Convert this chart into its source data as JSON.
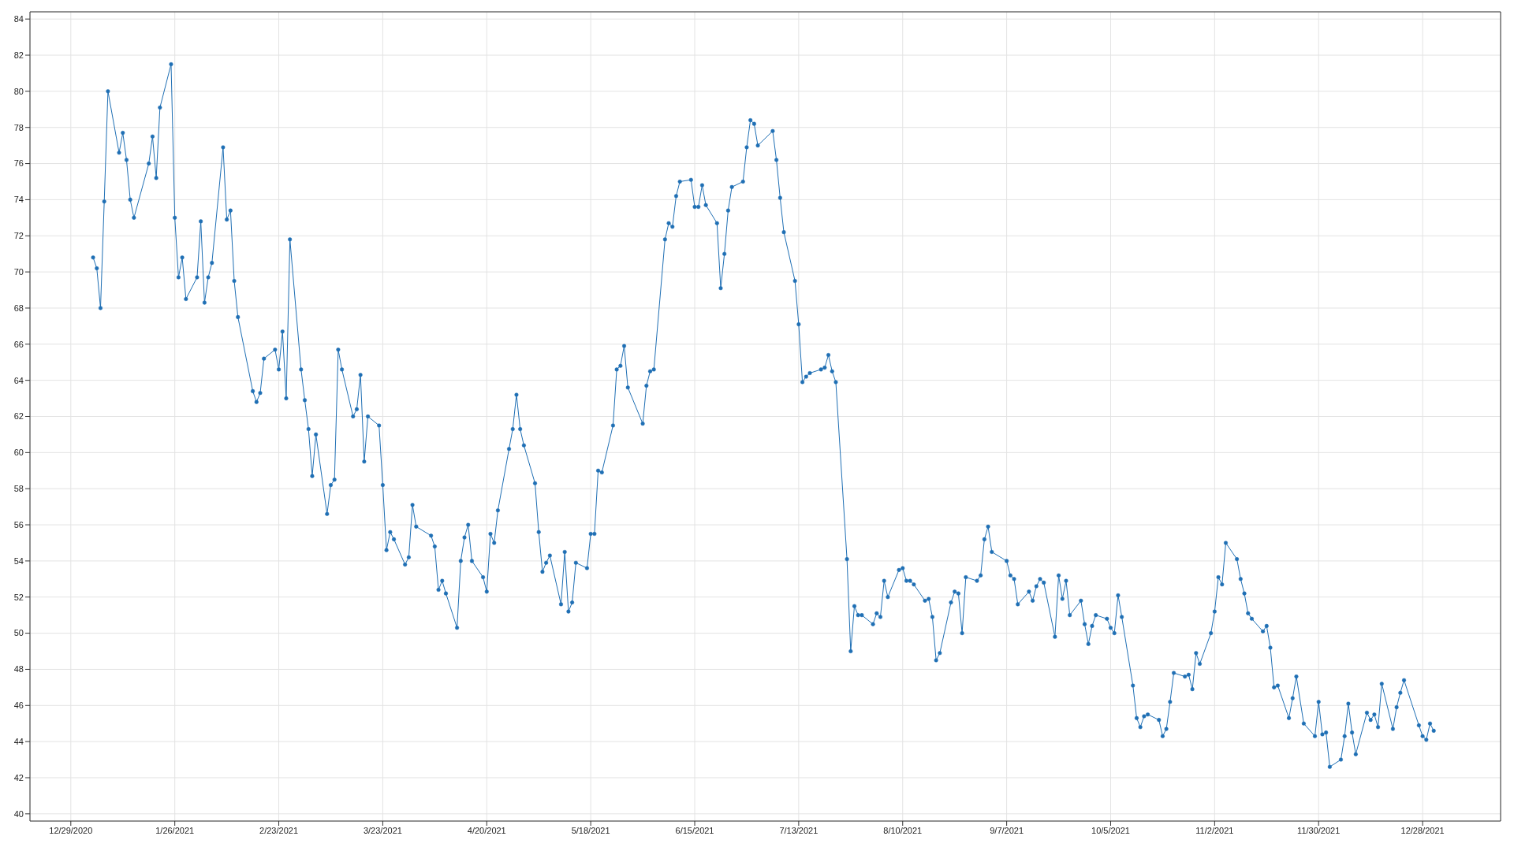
{
  "chart_data": {
    "type": "line",
    "xlim": [
      "2020-12-18",
      "2022-01-18"
    ],
    "ylim": [
      39.6,
      84.4
    ],
    "xticks": [
      {
        "value": "2020-12-29",
        "label": "12/29/2020"
      },
      {
        "value": "2021-01-26",
        "label": "1/26/2021"
      },
      {
        "value": "2021-02-23",
        "label": "2/23/2021"
      },
      {
        "value": "2021-03-23",
        "label": "3/23/2021"
      },
      {
        "value": "2021-04-20",
        "label": "4/20/2021"
      },
      {
        "value": "2021-05-18",
        "label": "5/18/2021"
      },
      {
        "value": "2021-06-15",
        "label": "6/15/2021"
      },
      {
        "value": "2021-07-13",
        "label": "7/13/2021"
      },
      {
        "value": "2021-08-10",
        "label": "8/10/2021"
      },
      {
        "value": "2021-09-07",
        "label": "9/7/2021"
      },
      {
        "value": "2021-10-05",
        "label": "10/5/2021"
      },
      {
        "value": "2021-11-02",
        "label": "11/2/2021"
      },
      {
        "value": "2021-11-30",
        "label": "11/30/2021"
      },
      {
        "value": "2021-12-28",
        "label": "12/28/2021"
      }
    ],
    "yticks": [
      40,
      42,
      44,
      46,
      48,
      50,
      52,
      54,
      56,
      58,
      60,
      62,
      64,
      66,
      68,
      70,
      72,
      74,
      76,
      78,
      80,
      82,
      84
    ],
    "grid": true,
    "legend": false,
    "marker": "circle",
    "line_style": "solid",
    "x": [
      "2021-01-04",
      "2021-01-05",
      "2021-01-06",
      "2021-01-07",
      "2021-01-08",
      "2021-01-11",
      "2021-01-12",
      "2021-01-13",
      "2021-01-14",
      "2021-01-15",
      "2021-01-19",
      "2021-01-20",
      "2021-01-21",
      "2021-01-22",
      "2021-01-25",
      "2021-01-26",
      "2021-01-27",
      "2021-01-28",
      "2021-01-29",
      "2021-02-01",
      "2021-02-02",
      "2021-02-03",
      "2021-02-04",
      "2021-02-05",
      "2021-02-08",
      "2021-02-09",
      "2021-02-10",
      "2021-02-11",
      "2021-02-12",
      "2021-02-16",
      "2021-02-17",
      "2021-02-18",
      "2021-02-19",
      "2021-02-22",
      "2021-02-23",
      "2021-02-24",
      "2021-02-25",
      "2021-02-26",
      "2021-03-01",
      "2021-03-02",
      "2021-03-03",
      "2021-03-04",
      "2021-03-05",
      "2021-03-08",
      "2021-03-09",
      "2021-03-10",
      "2021-03-11",
      "2021-03-12",
      "2021-03-15",
      "2021-03-16",
      "2021-03-17",
      "2021-03-18",
      "2021-03-19",
      "2021-03-22",
      "2021-03-23",
      "2021-03-24",
      "2021-03-25",
      "2021-03-26",
      "2021-03-29",
      "2021-03-30",
      "2021-03-31",
      "2021-04-01",
      "2021-04-05",
      "2021-04-06",
      "2021-04-07",
      "2021-04-08",
      "2021-04-09",
      "2021-04-12",
      "2021-04-13",
      "2021-04-14",
      "2021-04-15",
      "2021-04-16",
      "2021-04-19",
      "2021-04-20",
      "2021-04-21",
      "2021-04-22",
      "2021-04-23",
      "2021-04-26",
      "2021-04-27",
      "2021-04-28",
      "2021-04-29",
      "2021-04-30",
      "2021-05-03",
      "2021-05-04",
      "2021-05-05",
      "2021-05-06",
      "2021-05-07",
      "2021-05-10",
      "2021-05-11",
      "2021-05-12",
      "2021-05-13",
      "2021-05-14",
      "2021-05-17",
      "2021-05-18",
      "2021-05-19",
      "2021-05-20",
      "2021-05-21",
      "2021-05-24",
      "2021-05-25",
      "2021-05-26",
      "2021-05-27",
      "2021-05-28",
      "2021-06-01",
      "2021-06-02",
      "2021-06-03",
      "2021-06-04",
      "2021-06-07",
      "2021-06-08",
      "2021-06-09",
      "2021-06-10",
      "2021-06-11",
      "2021-06-14",
      "2021-06-15",
      "2021-06-16",
      "2021-06-17",
      "2021-06-18",
      "2021-06-21",
      "2021-06-22",
      "2021-06-23",
      "2021-06-24",
      "2021-06-25",
      "2021-06-28",
      "2021-06-29",
      "2021-06-30",
      "2021-07-01",
      "2021-07-02",
      "2021-07-06",
      "2021-07-07",
      "2021-07-08",
      "2021-07-09",
      "2021-07-12",
      "2021-07-13",
      "2021-07-14",
      "2021-07-15",
      "2021-07-16",
      "2021-07-19",
      "2021-07-20",
      "2021-07-21",
      "2021-07-22",
      "2021-07-23",
      "2021-07-26",
      "2021-07-27",
      "2021-07-28",
      "2021-07-29",
      "2021-07-30",
      "2021-08-02",
      "2021-08-03",
      "2021-08-04",
      "2021-08-05",
      "2021-08-06",
      "2021-08-09",
      "2021-08-10",
      "2021-08-11",
      "2021-08-12",
      "2021-08-13",
      "2021-08-16",
      "2021-08-17",
      "2021-08-18",
      "2021-08-19",
      "2021-08-20",
      "2021-08-23",
      "2021-08-24",
      "2021-08-25",
      "2021-08-26",
      "2021-08-27",
      "2021-08-30",
      "2021-08-31",
      "2021-09-01",
      "2021-09-02",
      "2021-09-03",
      "2021-09-07",
      "2021-09-08",
      "2021-09-09",
      "2021-09-10",
      "2021-09-13",
      "2021-09-14",
      "2021-09-15",
      "2021-09-16",
      "2021-09-17",
      "2021-09-20",
      "2021-09-21",
      "2021-09-22",
      "2021-09-23",
      "2021-09-24",
      "2021-09-27",
      "2021-09-28",
      "2021-09-29",
      "2021-09-30",
      "2021-10-01",
      "2021-10-04",
      "2021-10-05",
      "2021-10-06",
      "2021-10-07",
      "2021-10-08",
      "2021-10-11",
      "2021-10-12",
      "2021-10-13",
      "2021-10-14",
      "2021-10-15",
      "2021-10-18",
      "2021-10-19",
      "2021-10-20",
      "2021-10-21",
      "2021-10-22",
      "2021-10-25",
      "2021-10-26",
      "2021-10-27",
      "2021-10-28",
      "2021-10-29",
      "2021-11-01",
      "2021-11-02",
      "2021-11-03",
      "2021-11-04",
      "2021-11-05",
      "2021-11-08",
      "2021-11-09",
      "2021-11-10",
      "2021-11-11",
      "2021-11-12",
      "2021-11-15",
      "2021-11-16",
      "2021-11-17",
      "2021-11-18",
      "2021-11-19",
      "2021-11-22",
      "2021-11-23",
      "2021-11-24",
      "2021-11-26",
      "2021-11-29",
      "2021-11-30",
      "2021-12-01",
      "2021-12-02",
      "2021-12-03",
      "2021-12-06",
      "2021-12-07",
      "2021-12-08",
      "2021-12-09",
      "2021-12-10",
      "2021-12-13",
      "2021-12-14",
      "2021-12-15",
      "2021-12-16",
      "2021-12-17",
      "2021-12-20",
      "2021-12-21",
      "2021-12-22",
      "2021-12-23",
      "2021-12-27",
      "2021-12-28",
      "2021-12-29",
      "2021-12-30",
      "2021-12-31"
    ],
    "series": [
      {
        "color": "#1f6fb4",
        "values": [
          70.8,
          70.2,
          68.0,
          73.9,
          80.0,
          76.6,
          77.7,
          76.2,
          74.0,
          73.0,
          76.0,
          77.5,
          75.2,
          79.1,
          81.5,
          73.0,
          69.7,
          70.8,
          68.5,
          69.7,
          72.8,
          68.3,
          69.7,
          70.5,
          76.9,
          72.9,
          73.4,
          69.5,
          67.5,
          63.4,
          62.8,
          63.3,
          65.2,
          65.7,
          64.6,
          66.7,
          63.0,
          71.8,
          64.6,
          62.9,
          61.3,
          58.7,
          61.0,
          56.6,
          58.2,
          58.5,
          65.7,
          64.6,
          62.0,
          62.4,
          64.3,
          59.5,
          62.0,
          61.5,
          58.2,
          54.6,
          55.6,
          55.2,
          53.8,
          54.2,
          57.1,
          55.9,
          55.4,
          54.8,
          52.4,
          52.9,
          52.2,
          50.3,
          54.0,
          55.3,
          56.0,
          54.0,
          53.1,
          52.3,
          55.5,
          55.0,
          56.8,
          60.2,
          61.3,
          63.2,
          61.3,
          60.4,
          58.3,
          55.6,
          53.4,
          53.9,
          54.3,
          51.6,
          54.5,
          51.2,
          51.7,
          53.9,
          53.6,
          55.5,
          55.5,
          59.0,
          58.9,
          61.5,
          64.6,
          64.8,
          65.9,
          63.6,
          61.6,
          63.7,
          64.5,
          64.6,
          71.8,
          72.7,
          72.5,
          74.2,
          75.0,
          75.1,
          73.6,
          73.6,
          74.8,
          73.7,
          72.7,
          69.1,
          71.0,
          73.4,
          74.7,
          75.0,
          76.9,
          78.4,
          78.2,
          77.0,
          77.8,
          76.2,
          74.1,
          72.2,
          69.5,
          67.1,
          63.9,
          64.2,
          64.4,
          64.6,
          64.7,
          65.4,
          64.5,
          63.9,
          54.1,
          49.0,
          51.5,
          51.0,
          51.0,
          50.5,
          51.1,
          50.9,
          52.9,
          52.0,
          53.5,
          53.6,
          52.9,
          52.9,
          52.7,
          51.8,
          51.9,
          50.9,
          48.5,
          48.9,
          51.7,
          52.3,
          52.2,
          50.0,
          53.1,
          52.9,
          53.2,
          55.2,
          55.9,
          54.5,
          54.0,
          53.2,
          53.0,
          51.6,
          52.3,
          51.8,
          52.6,
          53.0,
          52.8,
          49.8,
          53.2,
          51.9,
          52.9,
          51.0,
          51.8,
          50.5,
          49.4,
          50.4,
          51.0,
          50.8,
          50.3,
          50.0,
          52.1,
          50.9,
          47.1,
          45.3,
          44.8,
          45.4,
          45.5,
          45.2,
          44.3,
          44.7,
          46.2,
          47.8,
          47.6,
          47.7,
          46.9,
          48.9,
          48.3,
          50.0,
          51.2,
          53.1,
          52.7,
          55.0,
          54.1,
          53.0,
          52.2,
          51.1,
          50.8,
          50.1,
          50.4,
          49.2,
          47.0,
          47.1,
          45.3,
          46.4,
          47.6,
          45.0,
          44.3,
          46.2,
          44.4,
          44.5,
          42.6,
          43.0,
          44.3,
          46.1,
          44.5,
          43.3,
          45.6,
          45.2,
          45.5,
          44.8,
          47.2,
          44.7,
          45.9,
          46.7,
          47.4,
          44.9,
          44.3,
          44.1,
          45.0,
          44.6
        ]
      }
    ]
  }
}
